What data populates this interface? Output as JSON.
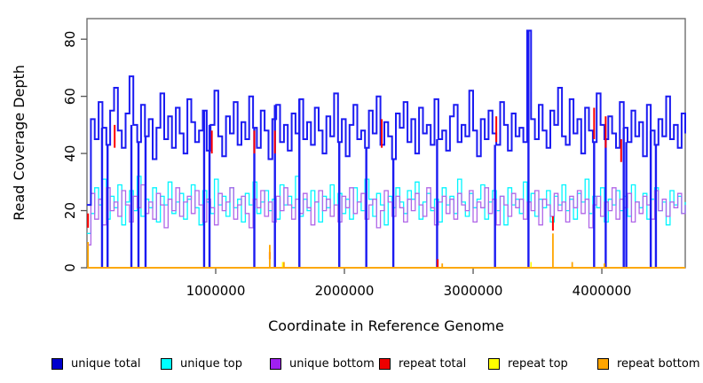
{
  "chart": {
    "y_ticks": [
      {
        "value": 0,
        "label": "0"
      },
      {
        "value": 20,
        "label": "20"
      },
      {
        "value": 40,
        "label": "40"
      },
      {
        "value": 60,
        "label": "60"
      },
      {
        "value": 80,
        "label": "80"
      }
    ],
    "x_ticks": [
      {
        "value": 1000000,
        "label": "1000000"
      },
      {
        "value": 2000000,
        "label": "2000000"
      },
      {
        "value": 3000000,
        "label": "3000000"
      },
      {
        "value": 4000000,
        "label": "4000000"
      }
    ]
  },
  "chart_data": {
    "type": "line",
    "title": "",
    "xlabel": "Coordinate in Reference Genome",
    "ylabel": "Read Coverage Depth",
    "x_range": [
      0,
      4648000
    ],
    "ylim": [
      0,
      87.2
    ],
    "x_step": 30000,
    "grid": false,
    "legend_position": "bottom",
    "zero_drop_positions": [
      117000,
      160000,
      345000,
      400000,
      455000,
      910000,
      952000,
      1300000,
      1460000,
      1650000,
      1960000,
      2170000,
      2380000,
      2720000,
      3170000,
      3430000,
      3940000,
      4030000,
      4170000,
      4190000,
      4380000,
      4420000
    ],
    "series": [
      {
        "name": "unique top",
        "color": "#00F5FF",
        "width": 1.3,
        "drops": true,
        "values": [
          12,
          19,
          28,
          22,
          31,
          17,
          25,
          21,
          29,
          15,
          23,
          27,
          20,
          32,
          18,
          24,
          21,
          28,
          16,
          25,
          22,
          30,
          19,
          23,
          26,
          17,
          24,
          29,
          21,
          15,
          27,
          23,
          19,
          31,
          22,
          25,
          18,
          28,
          21,
          24,
          16,
          26,
          22,
          30,
          19,
          23,
          27,
          20,
          24,
          17,
          29,
          22,
          25,
          21,
          32,
          18,
          24,
          20,
          27,
          23,
          16,
          25,
          21,
          29,
          22,
          26,
          19,
          24,
          17,
          28,
          23,
          20,
          31,
          24,
          18,
          26,
          22,
          15,
          25,
          21,
          28,
          23,
          19,
          27,
          24,
          30,
          17,
          23,
          26,
          20,
          24,
          16,
          28,
          22,
          25,
          19,
          31,
          23,
          18,
          26,
          21,
          24,
          29,
          17,
          23,
          27,
          20,
          25,
          15,
          28,
          22,
          24,
          19,
          30,
          23,
          26,
          18,
          24,
          21,
          27,
          16,
          25,
          22,
          29,
          20,
          24,
          17,
          26,
          23,
          31,
          19,
          25,
          21,
          28,
          16,
          24,
          22,
          27,
          20,
          25,
          18,
          29,
          23,
          21,
          26,
          17,
          24,
          28,
          20,
          23,
          15,
          27,
          22,
          25,
          19,
          23
        ]
      },
      {
        "name": "unique bottom",
        "color": "#B066E8",
        "width": 1.3,
        "drops": true,
        "values": [
          8,
          26,
          17,
          24,
          15,
          28,
          20,
          23,
          18,
          27,
          22,
          16,
          25,
          21,
          29,
          19,
          23,
          17,
          26,
          22,
          14,
          24,
          20,
          28,
          18,
          23,
          25,
          19,
          27,
          22,
          16,
          24,
          21,
          15,
          26,
          20,
          23,
          28,
          17,
          22,
          25,
          19,
          14,
          24,
          21,
          27,
          18,
          23,
          16,
          25,
          20,
          28,
          22,
          17,
          24,
          19,
          26,
          21,
          15,
          23,
          27,
          20,
          24,
          18,
          22,
          16,
          25,
          21,
          28,
          19,
          23,
          26,
          17,
          22,
          24,
          14,
          20,
          27,
          23,
          18,
          25,
          21,
          16,
          24,
          20,
          26,
          22,
          18,
          28,
          21,
          15,
          23,
          25,
          19,
          24,
          17,
          26,
          22,
          20,
          27,
          16,
          23,
          21,
          28,
          19,
          24,
          15,
          25,
          22,
          18,
          26,
          21,
          24,
          17,
          23,
          20,
          27,
          15,
          24,
          22,
          18,
          26,
          20,
          23,
          16,
          25,
          21,
          27,
          19,
          24,
          14,
          22,
          25,
          18,
          23,
          20,
          28,
          17,
          24,
          21,
          26,
          16,
          23,
          19,
          25,
          22,
          17,
          27,
          20,
          24,
          18,
          23,
          21,
          26,
          19,
          22
        ]
      },
      {
        "name": "unique total",
        "color": "#1B1BF2",
        "width": 2,
        "drops": true,
        "values": [
          22,
          52,
          45,
          58,
          49,
          43,
          55,
          63,
          48,
          42,
          54,
          67,
          50,
          44,
          57,
          46,
          52,
          38,
          49,
          61,
          45,
          53,
          42,
          56,
          47,
          40,
          59,
          51,
          44,
          48,
          55,
          41,
          50,
          62,
          46,
          39,
          53,
          47,
          58,
          43,
          51,
          45,
          60,
          49,
          42,
          55,
          48,
          38,
          52,
          57,
          44,
          50,
          41,
          54,
          47,
          59,
          45,
          51,
          43,
          56,
          48,
          40,
          53,
          46,
          61,
          44,
          52,
          39,
          50,
          57,
          45,
          48,
          42,
          55,
          47,
          60,
          43,
          51,
          46,
          38,
          54,
          49,
          58,
          44,
          52,
          40,
          56,
          47,
          50,
          43,
          59,
          45,
          48,
          41,
          53,
          57,
          44,
          50,
          46,
          62,
          48,
          39,
          52,
          45,
          55,
          47,
          43,
          58,
          50,
          41,
          54,
          46,
          49,
          44,
          83,
          52,
          45,
          57,
          48,
          42,
          55,
          50,
          63,
          46,
          43,
          59,
          47,
          52,
          40,
          56,
          48,
          44,
          61,
          50,
          45,
          53,
          47,
          42,
          58,
          49,
          44,
          55,
          46,
          51,
          39,
          57,
          48,
          43,
          52,
          46,
          60,
          45,
          50,
          42,
          54,
          47
        ]
      },
      {
        "name": "repeat total",
        "color": "#FF0000",
        "width": 2,
        "baseline": 0,
        "spikes": [
          [
            8000,
            14,
            19
          ],
          [
            215000,
            42,
            50
          ],
          [
            970000,
            40,
            48
          ],
          [
            1300000,
            40,
            48
          ],
          [
            1420000,
            3,
            5.5
          ],
          [
            1460000,
            40,
            48
          ],
          [
            2290000,
            42,
            52
          ],
          [
            2725000,
            0,
            3
          ],
          [
            3180000,
            44,
            53
          ],
          [
            3620000,
            13,
            18
          ],
          [
            3940000,
            45,
            56
          ],
          [
            4030000,
            42,
            53
          ],
          [
            4150000,
            37,
            45
          ]
        ]
      },
      {
        "name": "repeat top",
        "color": "#FFFF00",
        "width": 1.6,
        "baseline": 0,
        "spikes": [
          [
            1520000,
            0,
            2
          ],
          [
            3450000,
            0,
            2
          ]
        ]
      },
      {
        "name": "repeat bottom",
        "color": "#FFA500",
        "width": 1.8,
        "baseline": 0,
        "spikes": [
          [
            8000,
            0,
            9
          ],
          [
            1420000,
            0,
            8
          ],
          [
            1530000,
            0,
            2
          ],
          [
            2760000,
            0,
            1.5
          ],
          [
            3620000,
            0,
            12
          ],
          [
            3770000,
            0,
            2
          ],
          [
            4020000,
            0,
            1.5
          ]
        ]
      }
    ]
  },
  "legend": {
    "items": [
      {
        "label": "unique total",
        "color": "#0000CD"
      },
      {
        "label": "unique top",
        "color": "#00FFFF"
      },
      {
        "label": "unique bottom",
        "color": "#A020F0"
      },
      {
        "label": "repeat total",
        "color": "#EE0000"
      },
      {
        "label": "repeat top",
        "color": "#FFFF00"
      },
      {
        "label": "repeat bottom",
        "color": "#FFA500"
      }
    ]
  }
}
